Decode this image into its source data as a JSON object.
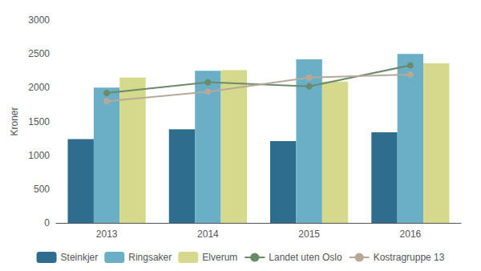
{
  "chart_data": {
    "type": "bar",
    "categories": [
      "2013",
      "2014",
      "2015",
      "2016"
    ],
    "ylabel": "Kroner",
    "ylim": [
      0,
      3000
    ],
    "yticks": [
      0,
      500,
      1000,
      1500,
      2000,
      2500,
      3000
    ],
    "grid": false,
    "legend": "bottom",
    "series": [
      {
        "name": "Steinkjer",
        "type": "bar",
        "color": "#2e6d8e",
        "values": [
          1240,
          1385,
          1210,
          1340
        ]
      },
      {
        "name": "Ringsaker",
        "type": "bar",
        "color": "#6bafc6",
        "values": [
          2000,
          2250,
          2420,
          2500
        ]
      },
      {
        "name": "Elverum",
        "type": "bar",
        "color": "#d5d98b",
        "values": [
          2150,
          2260,
          2090,
          2360
        ]
      },
      {
        "name": "Landet uten Oslo",
        "type": "line",
        "color": "#6a8a6a",
        "marker": "circle",
        "values": [
          1920,
          2080,
          2020,
          2330
        ]
      },
      {
        "name": "Kostragruppe 13",
        "type": "line",
        "color": "#b8a898",
        "marker": "circle",
        "values": [
          1800,
          1940,
          2150,
          2195
        ]
      }
    ]
  }
}
